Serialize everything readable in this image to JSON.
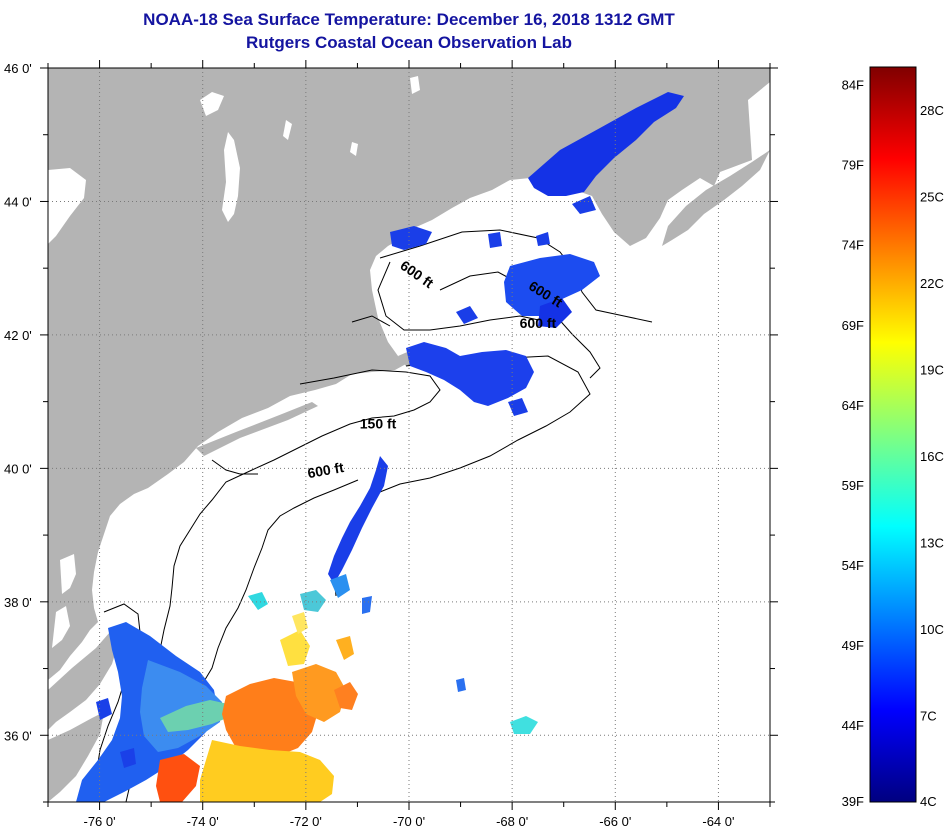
{
  "title": {
    "line1": "NOAA-18 Sea Surface Temperature:  December 16, 2018 1312 GMT",
    "line2": "Rutgers Coastal Ocean Observation Lab"
  },
  "map": {
    "lon_range": [
      -77,
      -63
    ],
    "lat_range": [
      35,
      46
    ],
    "lon_ticks": [
      {
        "value": -76,
        "label": "-76 0'"
      },
      {
        "value": -74,
        "label": "-74 0'"
      },
      {
        "value": -72,
        "label": "-72 0'"
      },
      {
        "value": -70,
        "label": "-70 0'"
      },
      {
        "value": -68,
        "label": "-68 0'"
      },
      {
        "value": -66,
        "label": "-66 0'"
      },
      {
        "value": -64,
        "label": "-64 0'"
      }
    ],
    "lat_ticks": [
      {
        "value": 46,
        "label": "46 0'"
      },
      {
        "value": 44,
        "label": "44 0'"
      },
      {
        "value": 42,
        "label": "42 0'"
      },
      {
        "value": 40,
        "label": "40 0'"
      },
      {
        "value": 38,
        "label": "38 0'"
      },
      {
        "value": 36,
        "label": "36 0'"
      }
    ],
    "contour_labels": [
      {
        "text": "600 ft",
        "lon": -69.9,
        "lat": 42.85,
        "rotate": 35
      },
      {
        "text": "600 ft",
        "lon": -67.4,
        "lat": 42.55,
        "rotate": 32
      },
      {
        "text": "600 ft",
        "lon": -67.5,
        "lat": 42.1,
        "rotate": 0
      },
      {
        "text": "150 ft",
        "lon": -70.6,
        "lat": 40.6,
        "rotate": 0
      },
      {
        "text": "600 ft",
        "lon": -71.6,
        "lat": 39.9,
        "rotate": -10
      }
    ],
    "colors": {
      "land": "#b4b4b4",
      "ocean": "#ffffff",
      "dots": "#8c8c8c"
    }
  },
  "colorbar": {
    "scale_min_c": 4,
    "scale_max_c": 29.5,
    "colors": [
      "#000080",
      "#0000ff",
      "#0080ff",
      "#00ffff",
      "#80ff80",
      "#ffff00",
      "#ff8000",
      "#ff0000",
      "#800000"
    ],
    "fahrenheit": [
      {
        "value": 39,
        "label": "39F"
      },
      {
        "value": 44,
        "label": "44F"
      },
      {
        "value": 49,
        "label": "49F"
      },
      {
        "value": 54,
        "label": "54F"
      },
      {
        "value": 59,
        "label": "59F"
      },
      {
        "value": 64,
        "label": "64F"
      },
      {
        "value": 69,
        "label": "69F"
      },
      {
        "value": 74,
        "label": "74F"
      },
      {
        "value": 79,
        "label": "79F"
      },
      {
        "value": 84,
        "label": "84F"
      }
    ],
    "celsius": [
      {
        "value": 4,
        "label": "4C"
      },
      {
        "value": 7,
        "label": "7C"
      },
      {
        "value": 10,
        "label": "10C"
      },
      {
        "value": 13,
        "label": "13C"
      },
      {
        "value": 16,
        "label": "16C"
      },
      {
        "value": 19,
        "label": "19C"
      },
      {
        "value": 22,
        "label": "22C"
      },
      {
        "value": 25,
        "label": "25C"
      },
      {
        "value": 28,
        "label": "28C"
      }
    ]
  }
}
